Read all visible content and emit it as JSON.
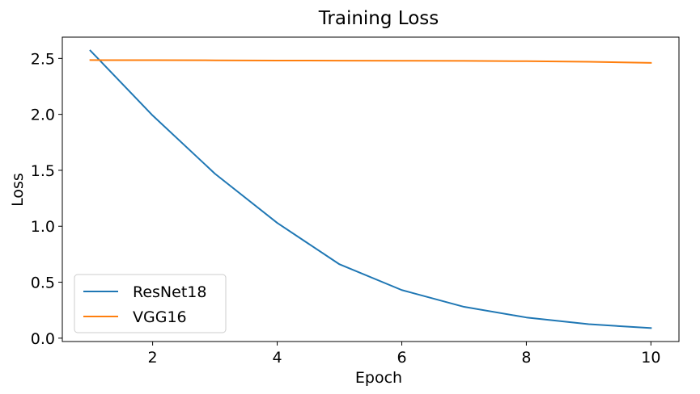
{
  "chart_data": {
    "type": "line",
    "title": "Training Loss",
    "xlabel": "Epoch",
    "ylabel": "Loss",
    "x": [
      1,
      2,
      3,
      4,
      5,
      6,
      7,
      8,
      9,
      10
    ],
    "xlim": [
      0.55,
      10.45
    ],
    "ylim": [
      -0.03,
      2.69
    ],
    "xticks": [
      2,
      4,
      6,
      8,
      10
    ],
    "xtick_labels": [
      "2",
      "4",
      "6",
      "8",
      "10"
    ],
    "yticks": [
      0.0,
      0.5,
      1.0,
      1.5,
      2.0,
      2.5
    ],
    "ytick_labels": [
      "0.0",
      "0.5",
      "1.0",
      "1.5",
      "2.0",
      "2.5"
    ],
    "grid": false,
    "legend_position": "lower-left",
    "series": [
      {
        "name": "ResNet18",
        "color": "#1f77b4",
        "values": [
          2.57,
          1.99,
          1.47,
          1.03,
          0.66,
          0.43,
          0.28,
          0.185,
          0.125,
          0.09
        ]
      },
      {
        "name": "VGG16",
        "color": "#ff7f0e",
        "values": [
          2.485,
          2.484,
          2.483,
          2.481,
          2.48,
          2.479,
          2.478,
          2.475,
          2.47,
          2.46
        ]
      }
    ]
  }
}
